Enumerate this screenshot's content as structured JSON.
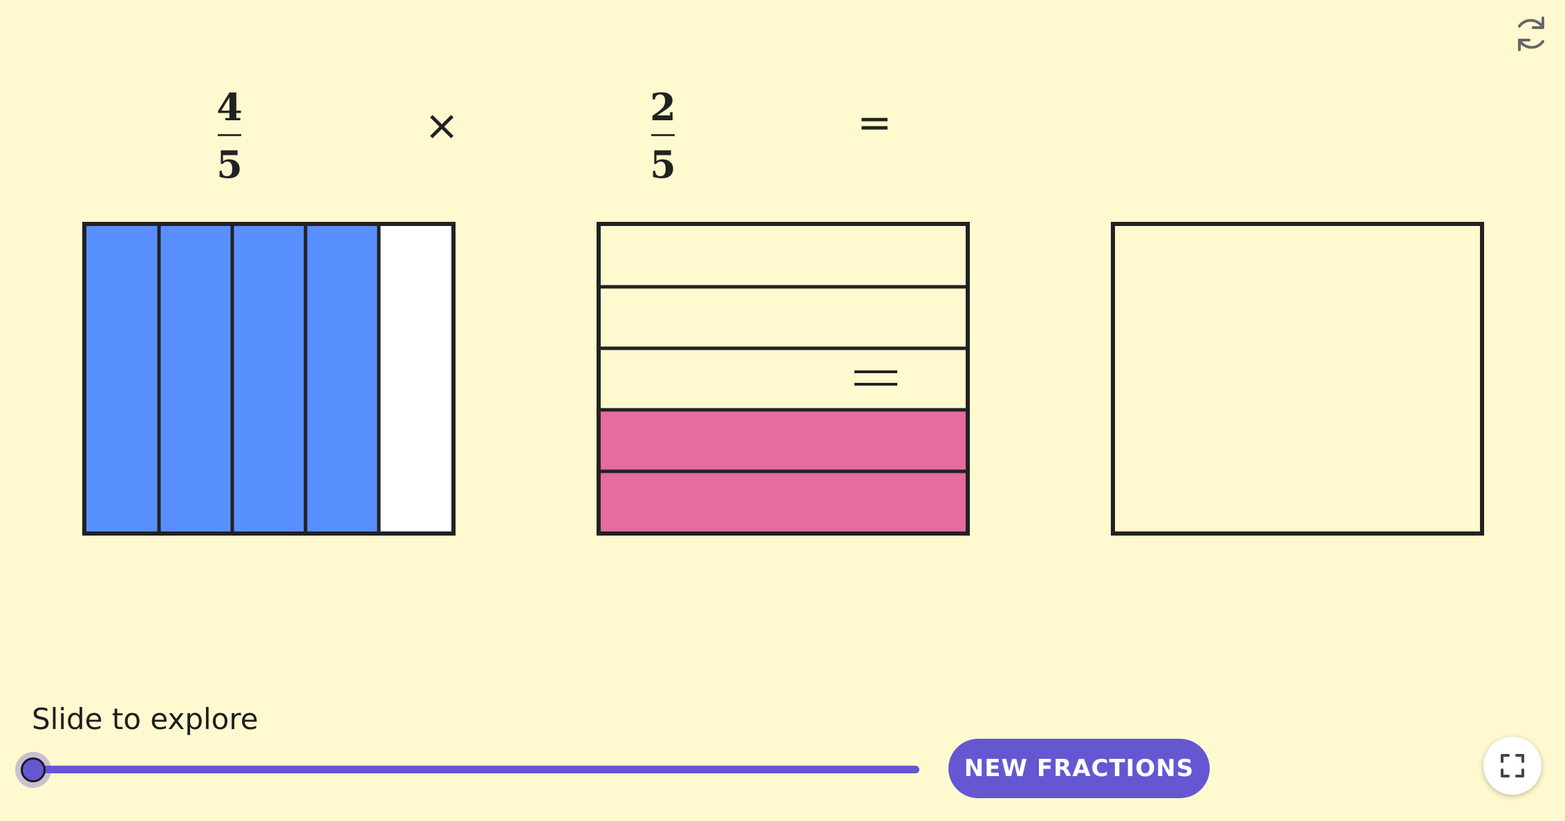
{
  "toolbar": {
    "reset_icon": "refresh-icon",
    "fullscreen_icon": "fullscreen-icon"
  },
  "equation": {
    "fraction1": {
      "numerator": "4",
      "denominator": "5"
    },
    "operator": "×",
    "fraction2": {
      "numerator": "2",
      "denominator": "5"
    },
    "equals": "="
  },
  "models": {
    "fraction1": {
      "parts": 5,
      "shaded": 4,
      "orientation": "vertical",
      "color": "#5890ff"
    },
    "fraction2": {
      "parts": 5,
      "shaded": 2,
      "orientation": "horizontal",
      "color": "#e46c9e"
    },
    "result": {
      "parts": 0,
      "shaded": 0
    }
  },
  "slider": {
    "label": "Slide to explore",
    "value": 0,
    "min": 0,
    "max": 1,
    "color": "#6557d2"
  },
  "buttons": {
    "new_fractions": "NEW FRACTIONS"
  },
  "colors": {
    "background": "#fff9cf",
    "accent": "#6557d2",
    "blue": "#5890ff",
    "pink": "#e46c9e"
  }
}
